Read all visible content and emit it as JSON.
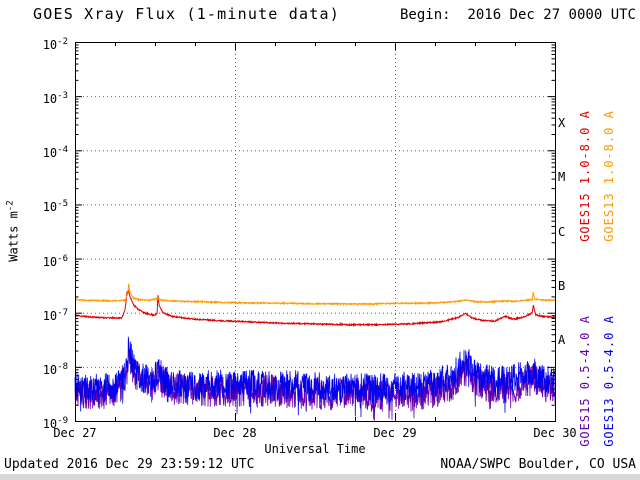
{
  "header": {
    "begin_label": "Begin:  2016 Dec 27 0000 UTC"
  },
  "footer": {
    "updated": "Updated 2016 Dec 29 23:59:12 UTC",
    "source": "NOAA/SWPC Boulder, CO USA"
  },
  "chart_data": {
    "type": "line",
    "title": "GOES Xray Flux (1-minute data)",
    "xlabel": "Universal Time",
    "ylabel_base": "Watts m",
    "ylabel_exp": "-2",
    "x_hours_range": [
      0,
      72
    ],
    "y_log10_range": [
      -9,
      -2
    ],
    "x_minor_tick_hours": 6,
    "x_ticks": [
      {
        "hour": 0,
        "label": "Dec 27"
      },
      {
        "hour": 24,
        "label": "Dec 28"
      },
      {
        "hour": 48,
        "label": "Dec 29"
      },
      {
        "hour": 72,
        "label": "Dec 30"
      }
    ],
    "y_tick_exponents": [
      -2,
      -3,
      -4,
      -5,
      -6,
      -7,
      -8,
      -9
    ],
    "grid": {
      "h_exponents": [
        -3,
        -4,
        -5,
        -6,
        -7,
        -8
      ],
      "v_hours": [
        24,
        48
      ]
    },
    "colors": {
      "grid": "#666666",
      "frame": "#000000"
    },
    "flare_classes": [
      {
        "label": "X",
        "log10_center": -3.5
      },
      {
        "label": "M",
        "log10_center": -4.5
      },
      {
        "label": "C",
        "log10_center": -5.5
      },
      {
        "label": "B",
        "log10_center": -6.5
      },
      {
        "label": "A",
        "log10_center": -7.5
      }
    ],
    "series": [
      {
        "name": "GOES15 1.0-8.0 A",
        "color": "#dd0000",
        "channel": "long",
        "noise_log10": 0.012,
        "seed": 11,
        "points": [
          [
            0,
            9e-08
          ],
          [
            2,
            8.4e-08
          ],
          [
            5,
            8e-08
          ],
          [
            7.0,
            8e-08
          ],
          [
            7.5,
            1.1e-07
          ],
          [
            7.8,
            2.4e-07
          ],
          [
            8.0,
            2.6e-07
          ],
          [
            8.3,
            1.9e-07
          ],
          [
            8.8,
            1.4e-07
          ],
          [
            9.5,
            1.15e-07
          ],
          [
            10.5,
            9.8e-08
          ],
          [
            11.8,
            9e-08
          ],
          [
            12.3,
            9.5e-08
          ],
          [
            12.45,
            2.1e-07
          ],
          [
            12.6,
            1.4e-07
          ],
          [
            13.2,
            1e-07
          ],
          [
            14.5,
            8.6e-08
          ],
          [
            17,
            7.8e-08
          ],
          [
            21,
            7.2e-08
          ],
          [
            26,
            6.8e-08
          ],
          [
            31,
            6.4e-08
          ],
          [
            36,
            6.2e-08
          ],
          [
            41,
            6e-08
          ],
          [
            46,
            6e-08
          ],
          [
            51,
            6.3e-08
          ],
          [
            55,
            6.8e-08
          ],
          [
            57.5,
            8.2e-08
          ],
          [
            58.6,
            9.6e-08
          ],
          [
            59.6,
            8e-08
          ],
          [
            61,
            7.2e-08
          ],
          [
            63,
            7e-08
          ],
          [
            64.5,
            8.6e-08
          ],
          [
            65.8,
            7.6e-08
          ],
          [
            67.2,
            8.2e-08
          ],
          [
            68.6,
            1e-07
          ],
          [
            68.75,
            1.35e-07
          ],
          [
            69.1,
            9.2e-08
          ],
          [
            70,
            8.6e-08
          ],
          [
            71,
            8.4e-08
          ],
          [
            72,
            8.2e-08
          ]
        ]
      },
      {
        "name": "GOES13 1.0-8.0 A",
        "color": "#ff9900",
        "channel": "long",
        "noise_log10": 0.012,
        "seed": 22,
        "points": [
          [
            0,
            1.75e-07
          ],
          [
            3,
            1.68e-07
          ],
          [
            6,
            1.65e-07
          ],
          [
            7.5,
            1.7e-07
          ],
          [
            7.9,
            2.2e-07
          ],
          [
            8.05,
            3.5e-07
          ],
          [
            8.25,
            2.4e-07
          ],
          [
            8.7,
            1.9e-07
          ],
          [
            9.5,
            1.75e-07
          ],
          [
            11,
            1.68e-07
          ],
          [
            12.45,
            1.85e-07
          ],
          [
            13,
            1.7e-07
          ],
          [
            16,
            1.62e-07
          ],
          [
            20,
            1.58e-07
          ],
          [
            25,
            1.52e-07
          ],
          [
            30,
            1.5e-07
          ],
          [
            35,
            1.47e-07
          ],
          [
            40,
            1.45e-07
          ],
          [
            45,
            1.46e-07
          ],
          [
            50,
            1.5e-07
          ],
          [
            54,
            1.52e-07
          ],
          [
            57.5,
            1.62e-07
          ],
          [
            58.6,
            1.72e-07
          ],
          [
            60,
            1.6e-07
          ],
          [
            62,
            1.58e-07
          ],
          [
            64.5,
            1.65e-07
          ],
          [
            66,
            1.62e-07
          ],
          [
            68.6,
            1.75e-07
          ],
          [
            68.72,
            2.45e-07
          ],
          [
            68.95,
            1.8e-07
          ],
          [
            70,
            1.7e-07
          ],
          [
            71.5,
            1.72e-07
          ],
          [
            72,
            1.72e-07
          ]
        ]
      },
      {
        "name": "GOES15 0.5-4.0 A",
        "color": "#6600aa",
        "channel": "short",
        "noise_log10": 0.3,
        "seed": 33,
        "points": [
          [
            0,
            3.4e-09
          ],
          [
            2,
            3.1e-09
          ],
          [
            4,
            3.2e-09
          ],
          [
            6,
            3.4e-09
          ],
          [
            7.5,
            5.5e-09
          ],
          [
            7.9,
            1.1e-08
          ],
          [
            8.05,
            1.9e-08
          ],
          [
            8.4,
            1.2e-08
          ],
          [
            9,
            7e-09
          ],
          [
            10,
            5.2e-09
          ],
          [
            11.5,
            4.2e-09
          ],
          [
            12.45,
            6.8e-09
          ],
          [
            13.5,
            4.4e-09
          ],
          [
            15,
            3.9e-09
          ],
          [
            18,
            3.5e-09
          ],
          [
            22,
            3.7e-09
          ],
          [
            26,
            3.5e-09
          ],
          [
            30,
            3.6e-09
          ],
          [
            34,
            3.3e-09
          ],
          [
            38,
            3.1e-09
          ],
          [
            42,
            3.2e-09
          ],
          [
            45,
            2.9e-09
          ],
          [
            48,
            2.8e-09
          ],
          [
            51,
            3e-09
          ],
          [
            54,
            3.4e-09
          ],
          [
            56.5,
            4.5e-09
          ],
          [
            58,
            7.5e-09
          ],
          [
            58.8,
            8.5e-09
          ],
          [
            59.8,
            6e-09
          ],
          [
            61,
            4.8e-09
          ],
          [
            63,
            4e-09
          ],
          [
            65,
            4.2e-09
          ],
          [
            67,
            4.6e-09
          ],
          [
            68.7,
            6e-09
          ],
          [
            70,
            4.4e-09
          ],
          [
            71,
            4e-09
          ],
          [
            72,
            3.8e-09
          ]
        ]
      },
      {
        "name": "GOES13 0.5-4.0 A",
        "color": "#0000ee",
        "channel": "short",
        "noise_log10": 0.28,
        "seed": 44,
        "points": [
          [
            0,
            4.2e-09
          ],
          [
            2,
            3.8e-09
          ],
          [
            4,
            4e-09
          ],
          [
            6,
            4.2e-09
          ],
          [
            7.5,
            6.5e-09
          ],
          [
            7.9,
            1.4e-08
          ],
          [
            8.05,
            2.4e-08
          ],
          [
            8.4,
            1.5e-08
          ],
          [
            9,
            9e-09
          ],
          [
            10,
            6.5e-09
          ],
          [
            11.5,
            5.2e-09
          ],
          [
            12.45,
            8.5e-09
          ],
          [
            13.5,
            5.5e-09
          ],
          [
            15,
            4.8e-09
          ],
          [
            18,
            4.4e-09
          ],
          [
            21,
            4.8e-09
          ],
          [
            24,
            4.4e-09
          ],
          [
            27,
            4.8e-09
          ],
          [
            30,
            4.4e-09
          ],
          [
            33,
            4.6e-09
          ],
          [
            36,
            4.2e-09
          ],
          [
            39,
            4e-09
          ],
          [
            42,
            4.2e-09
          ],
          [
            45,
            3.9e-09
          ],
          [
            48,
            4.2e-09
          ],
          [
            51,
            4.4e-09
          ],
          [
            54,
            5e-09
          ],
          [
            56.5,
            6.5e-09
          ],
          [
            58,
            1.15e-08
          ],
          [
            58.8,
            1.3e-08
          ],
          [
            59.8,
            8.5e-09
          ],
          [
            61,
            6.5e-09
          ],
          [
            62.5,
            5.5e-09
          ],
          [
            64,
            5.8e-09
          ],
          [
            65.5,
            6.2e-09
          ],
          [
            67,
            6.6e-09
          ],
          [
            68.7,
            8.5e-09
          ],
          [
            69.8,
            6.2e-09
          ],
          [
            71,
            5.4e-09
          ],
          [
            72,
            5e-09
          ]
        ]
      }
    ]
  }
}
